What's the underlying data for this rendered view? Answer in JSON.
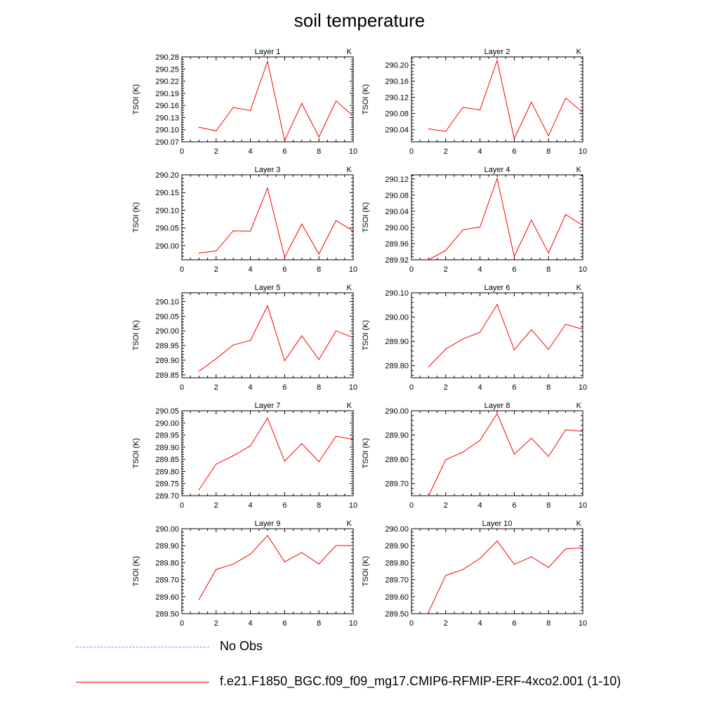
{
  "title": "soil temperature",
  "legend": {
    "items": [
      {
        "label": "No Obs",
        "style": "dashed",
        "color": "#8080ff"
      },
      {
        "label": "f.e21.F1850_BGC.f09_f09_mg17.CMIP6-RFMIP-ERF-4xco2.001 (1-10)",
        "style": "solid",
        "color": "#ff0000"
      }
    ]
  },
  "chart_data": [
    {
      "type": "line",
      "title": "Layer 1",
      "corner_label": "K",
      "ylabel": "TSOI  (K)",
      "xlim": [
        0,
        10
      ],
      "xticks": [
        0,
        2,
        4,
        6,
        8,
        10
      ],
      "ylim": [
        290.07,
        290.28
      ],
      "yticks": [
        "290.07",
        "290.10",
        "290.13",
        "290.16",
        "290.19",
        "290.22",
        "290.25",
        "290.28"
      ],
      "series": [
        {
          "color": "#ff0000",
          "x": [
            1,
            2,
            3,
            4,
            5,
            6,
            7,
            8,
            9,
            10
          ],
          "y": [
            290.106,
            290.097,
            290.155,
            290.147,
            290.269,
            290.073,
            290.165,
            290.082,
            290.171,
            290.134
          ]
        }
      ]
    },
    {
      "type": "line",
      "title": "Layer 2",
      "corner_label": "K",
      "ylabel": "TSOI  (K)",
      "xlim": [
        0,
        10
      ],
      "xticks": [
        0,
        2,
        4,
        6,
        8,
        10
      ],
      "ylim": [
        290.01,
        290.22
      ],
      "yticks": [
        "290.04",
        "290.08",
        "290.12",
        "290.16",
        "290.20"
      ],
      "series": [
        {
          "color": "#ff0000",
          "x": [
            1,
            2,
            3,
            4,
            5,
            6,
            7,
            8,
            9,
            10
          ],
          "y": [
            290.042,
            290.036,
            290.095,
            290.089,
            290.211,
            290.018,
            290.108,
            290.025,
            290.118,
            290.083
          ]
        }
      ]
    },
    {
      "type": "line",
      "title": "Layer 3",
      "corner_label": "K",
      "ylabel": "TSOI  (K)",
      "xlim": [
        0,
        10
      ],
      "xticks": [
        0,
        2,
        4,
        6,
        8,
        10
      ],
      "ylim": [
        289.96,
        290.2
      ],
      "yticks": [
        "290.00",
        "290.05",
        "290.10",
        "290.15",
        "290.20"
      ],
      "series": [
        {
          "color": "#ff0000",
          "x": [
            1,
            2,
            3,
            4,
            5,
            6,
            7,
            8,
            9,
            10
          ],
          "y": [
            289.979,
            289.985,
            290.042,
            290.041,
            290.163,
            289.967,
            290.061,
            289.976,
            290.071,
            290.041
          ]
        }
      ]
    },
    {
      "type": "line",
      "title": "Layer 4",
      "corner_label": "K",
      "ylabel": "TSOI  (K)",
      "xlim": [
        0,
        10
      ],
      "xticks": [
        0,
        2,
        4,
        6,
        8,
        10
      ],
      "ylim": [
        289.92,
        290.13
      ],
      "yticks": [
        "289.92",
        "289.96",
        "290.00",
        "290.04",
        "290.08",
        "290.12"
      ],
      "series": [
        {
          "color": "#ff0000",
          "x": [
            1,
            2,
            3,
            4,
            5,
            6,
            7,
            8,
            9,
            10
          ],
          "y": [
            289.92,
            289.943,
            289.994,
            290.001,
            290.121,
            289.928,
            290.018,
            289.937,
            290.032,
            290.005
          ]
        }
      ]
    },
    {
      "type": "line",
      "title": "Layer 5",
      "corner_label": "K",
      "ylabel": "TSOI  (K)",
      "xlim": [
        0,
        10
      ],
      "xticks": [
        0,
        2,
        4,
        6,
        8,
        10
      ],
      "ylim": [
        289.84,
        290.13
      ],
      "yticks": [
        "289.85",
        "289.90",
        "289.95",
        "290.00",
        "290.05",
        "290.10"
      ],
      "series": [
        {
          "color": "#ff0000",
          "x": [
            1,
            2,
            3,
            4,
            5,
            6,
            7,
            8,
            9,
            10
          ],
          "y": [
            289.862,
            289.905,
            289.952,
            289.967,
            290.086,
            289.898,
            289.983,
            289.902,
            290.0,
            289.977
          ]
        }
      ]
    },
    {
      "type": "line",
      "title": "Layer 6",
      "corner_label": "K",
      "ylabel": "TSOI  (K)",
      "xlim": [
        0,
        10
      ],
      "xticks": [
        0,
        2,
        4,
        6,
        8,
        10
      ],
      "ylim": [
        289.75,
        290.1
      ],
      "yticks": [
        "289.80",
        "289.90",
        "290.00",
        "290.10"
      ],
      "series": [
        {
          "color": "#ff0000",
          "x": [
            1,
            2,
            3,
            4,
            5,
            6,
            7,
            8,
            9,
            10
          ],
          "y": [
            289.795,
            289.868,
            289.91,
            289.937,
            290.052,
            289.865,
            289.948,
            289.867,
            289.97,
            289.95
          ]
        }
      ]
    },
    {
      "type": "line",
      "title": "Layer 7",
      "corner_label": "K",
      "ylabel": "TSOI  (K)",
      "xlim": [
        0,
        10
      ],
      "xticks": [
        0,
        2,
        4,
        6,
        8,
        10
      ],
      "ylim": [
        289.7,
        290.05
      ],
      "yticks": [
        "289.70",
        "289.75",
        "289.80",
        "289.85",
        "289.90",
        "289.95",
        "290.00",
        "290.05"
      ],
      "series": [
        {
          "color": "#ff0000",
          "x": [
            1,
            2,
            3,
            4,
            5,
            6,
            7,
            8,
            9,
            10
          ],
          "y": [
            289.725,
            289.83,
            289.865,
            289.905,
            290.02,
            289.842,
            289.915,
            289.84,
            289.945,
            289.932
          ]
        }
      ]
    },
    {
      "type": "line",
      "title": "Layer 8",
      "corner_label": "K",
      "ylabel": "TSOI  (K)",
      "xlim": [
        0,
        10
      ],
      "xticks": [
        0,
        2,
        4,
        6,
        8,
        10
      ],
      "ylim": [
        289.65,
        290.0
      ],
      "yticks": [
        "289.70",
        "289.80",
        "289.90",
        "290.00"
      ],
      "series": [
        {
          "color": "#ff0000",
          "x": [
            1,
            2,
            3,
            4,
            5,
            6,
            7,
            8,
            9,
            10
          ],
          "y": [
            289.65,
            289.798,
            289.83,
            289.878,
            289.988,
            289.821,
            289.887,
            289.812,
            289.922,
            289.915
          ]
        }
      ]
    },
    {
      "type": "line",
      "title": "Layer 9",
      "corner_label": "K",
      "ylabel": "TSOI  (K)",
      "xlim": [
        0,
        10
      ],
      "xticks": [
        0,
        2,
        4,
        6,
        8,
        10
      ],
      "ylim": [
        289.5,
        290.0
      ],
      "yticks": [
        "289.50",
        "289.60",
        "289.70",
        "289.80",
        "289.90",
        "290.00"
      ],
      "series": [
        {
          "color": "#ff0000",
          "x": [
            1,
            2,
            3,
            4,
            5,
            6,
            7,
            8,
            9,
            10
          ],
          "y": [
            289.583,
            289.76,
            289.792,
            289.85,
            289.96,
            289.805,
            289.86,
            289.792,
            289.901,
            289.901
          ]
        }
      ]
    },
    {
      "type": "line",
      "title": "Layer 10",
      "corner_label": "K",
      "ylabel": "TSOI  (K)",
      "xlim": [
        0,
        10
      ],
      "xticks": [
        0,
        2,
        4,
        6,
        8,
        10
      ],
      "ylim": [
        289.5,
        290.0
      ],
      "yticks": [
        "289.50",
        "289.60",
        "289.70",
        "289.80",
        "289.90",
        "290.00"
      ],
      "series": [
        {
          "color": "#ff0000",
          "x": [
            1,
            2,
            3,
            4,
            5,
            6,
            7,
            8,
            9,
            10
          ],
          "y": [
            289.51,
            289.725,
            289.76,
            289.825,
            289.928,
            289.79,
            289.835,
            289.772,
            289.882,
            289.888
          ]
        }
      ]
    }
  ]
}
